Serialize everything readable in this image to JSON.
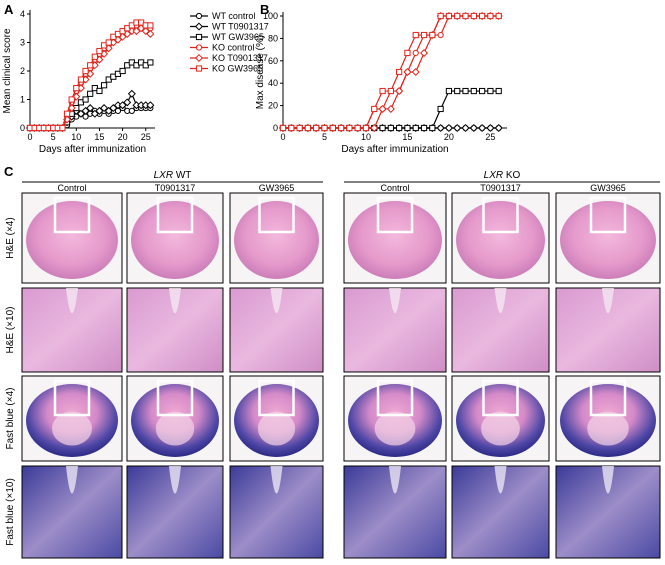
{
  "panel_labels": [
    "A",
    "B",
    "C"
  ],
  "chart_data": [
    {
      "type": "line",
      "x_label": "Days after immunization",
      "y_label": "Mean clinical score",
      "xlim": [
        0,
        27
      ],
      "xticks": [
        0,
        5,
        10,
        15,
        20,
        25
      ],
      "ylim": [
        0,
        4
      ],
      "yticks": [
        0,
        1,
        2,
        3,
        4
      ],
      "grid": false,
      "legend": "outside right",
      "x": [
        0,
        1,
        2,
        3,
        4,
        5,
        6,
        7,
        8,
        9,
        10,
        11,
        12,
        13,
        14,
        15,
        16,
        17,
        18,
        19,
        20,
        21,
        22,
        23,
        24,
        25,
        26
      ],
      "series": [
        {
          "name": "WT control",
          "color": "#000000",
          "marker": "circle",
          "values": [
            0,
            0,
            0,
            0,
            0,
            0,
            0,
            0,
            0.1,
            0.3,
            0.4,
            0.5,
            0.4,
            0.5,
            0.6,
            0.5,
            0.6,
            0.5,
            0.6,
            0.6,
            0.7,
            0.6,
            0.6,
            0.7,
            0.7,
            0.7,
            0.7
          ]
        },
        {
          "name": "WT T0901317",
          "color": "#000000",
          "marker": "diamond",
          "values": [
            0,
            0,
            0,
            0,
            0,
            0,
            0,
            0,
            0.2,
            0.4,
            0.6,
            0.5,
            0.6,
            0.7,
            0.5,
            0.6,
            0.7,
            0.6,
            0.7,
            0.8,
            0.8,
            0.9,
            1.2,
            0.8,
            0.8,
            0.8,
            0.8
          ]
        },
        {
          "name": "WT GW3965",
          "color": "#000000",
          "marker": "square",
          "values": [
            0,
            0,
            0,
            0,
            0,
            0,
            0,
            0,
            0.2,
            0.5,
            0.7,
            0.9,
            1.0,
            1.2,
            1.4,
            1.3,
            1.5,
            1.7,
            1.8,
            1.9,
            2.0,
            2.2,
            2.3,
            2.2,
            2.3,
            2.2,
            2.3
          ]
        },
        {
          "name": "KO control",
          "color": "#e2231a",
          "marker": "circle",
          "values": [
            0,
            0,
            0,
            0,
            0,
            0,
            0,
            0,
            0.4,
            0.9,
            1.3,
            1.6,
            1.9,
            2.1,
            2.4,
            2.6,
            2.8,
            2.9,
            3.1,
            3.2,
            3.3,
            3.4,
            3.5,
            3.6,
            3.6,
            3.6,
            3.5
          ]
        },
        {
          "name": "KO T0901317",
          "color": "#e2231a",
          "marker": "diamond",
          "values": [
            0,
            0,
            0,
            0,
            0,
            0,
            0,
            0,
            0.3,
            0.7,
            1.1,
            1.4,
            1.7,
            1.9,
            2.2,
            2.4,
            2.6,
            2.8,
            3.0,
            3.1,
            3.2,
            3.3,
            3.4,
            3.4,
            3.5,
            3.4,
            3.3
          ]
        },
        {
          "name": "KO GW3965",
          "color": "#e2231a",
          "marker": "square",
          "values": [
            0,
            0,
            0,
            0,
            0,
            0,
            0,
            0,
            0.5,
            1.0,
            1.4,
            1.7,
            2.0,
            2.2,
            2.5,
            2.7,
            2.9,
            3.0,
            3.2,
            3.3,
            3.4,
            3.5,
            3.6,
            3.7,
            3.7,
            3.6,
            3.6
          ]
        }
      ]
    },
    {
      "type": "line",
      "x_label": "Days after immunization",
      "y_label": "Max disease (%)",
      "xlim": [
        0,
        27
      ],
      "xticks": [
        0,
        5,
        10,
        15,
        20,
        25
      ],
      "ylim": [
        0,
        100
      ],
      "yticks": [
        0,
        20,
        40,
        60,
        80,
        100
      ],
      "grid": false,
      "x": [
        0,
        1,
        2,
        3,
        4,
        5,
        6,
        7,
        8,
        9,
        10,
        11,
        12,
        13,
        14,
        15,
        16,
        17,
        18,
        19,
        20,
        21,
        22,
        23,
        24,
        25,
        26
      ],
      "series": [
        {
          "color": "#000000",
          "marker": "circle",
          "values": [
            0,
            0,
            0,
            0,
            0,
            0,
            0,
            0,
            0,
            0,
            0,
            0,
            0,
            0,
            0,
            0,
            0,
            0,
            0,
            0,
            0,
            0,
            0,
            0,
            0,
            0,
            0
          ]
        },
        {
          "color": "#000000",
          "marker": "diamond",
          "values": [
            0,
            0,
            0,
            0,
            0,
            0,
            0,
            0,
            0,
            0,
            0,
            0,
            0,
            0,
            0,
            0,
            0,
            0,
            0,
            0,
            0,
            0,
            0,
            0,
            0,
            0,
            0
          ]
        },
        {
          "color": "#000000",
          "marker": "square",
          "values": [
            0,
            0,
            0,
            0,
            0,
            0,
            0,
            0,
            0,
            0,
            0,
            0,
            0,
            0,
            0,
            0,
            0,
            0,
            0,
            17,
            33,
            33,
            33,
            33,
            33,
            33,
            33
          ]
        },
        {
          "color": "#e2231a",
          "marker": "circle",
          "values": [
            0,
            0,
            0,
            0,
            0,
            0,
            0,
            0,
            0,
            0,
            0,
            17,
            17,
            33,
            33,
            50,
            67,
            83,
            83,
            83,
            100,
            100,
            100,
            100,
            100,
            100,
            100
          ]
        },
        {
          "color": "#e2231a",
          "marker": "diamond",
          "values": [
            0,
            0,
            0,
            0,
            0,
            0,
            0,
            0,
            0,
            0,
            0,
            0,
            17,
            17,
            33,
            50,
            50,
            67,
            83,
            100,
            100,
            100,
            100,
            100,
            100,
            100,
            100
          ]
        },
        {
          "color": "#e2231a",
          "marker": "square",
          "values": [
            0,
            0,
            0,
            0,
            0,
            0,
            0,
            0,
            0,
            0,
            0,
            17,
            33,
            33,
            50,
            67,
            83,
            83,
            83,
            100,
            100,
            100,
            100,
            100,
            100,
            100,
            100
          ]
        }
      ]
    }
  ],
  "panel_c": {
    "groups": [
      {
        "gene": "LXR",
        "genotype": "WT",
        "columns": [
          "Control",
          "T0901317",
          "GW3965"
        ]
      },
      {
        "gene": "LXR",
        "genotype": "KO",
        "columns": [
          "Control",
          "T0901317",
          "GW3965"
        ]
      }
    ],
    "rows": [
      "H&E (×4)",
      "H&E (×10)",
      "Fast blue (×4)",
      "Fast blue (×10)"
    ]
  }
}
